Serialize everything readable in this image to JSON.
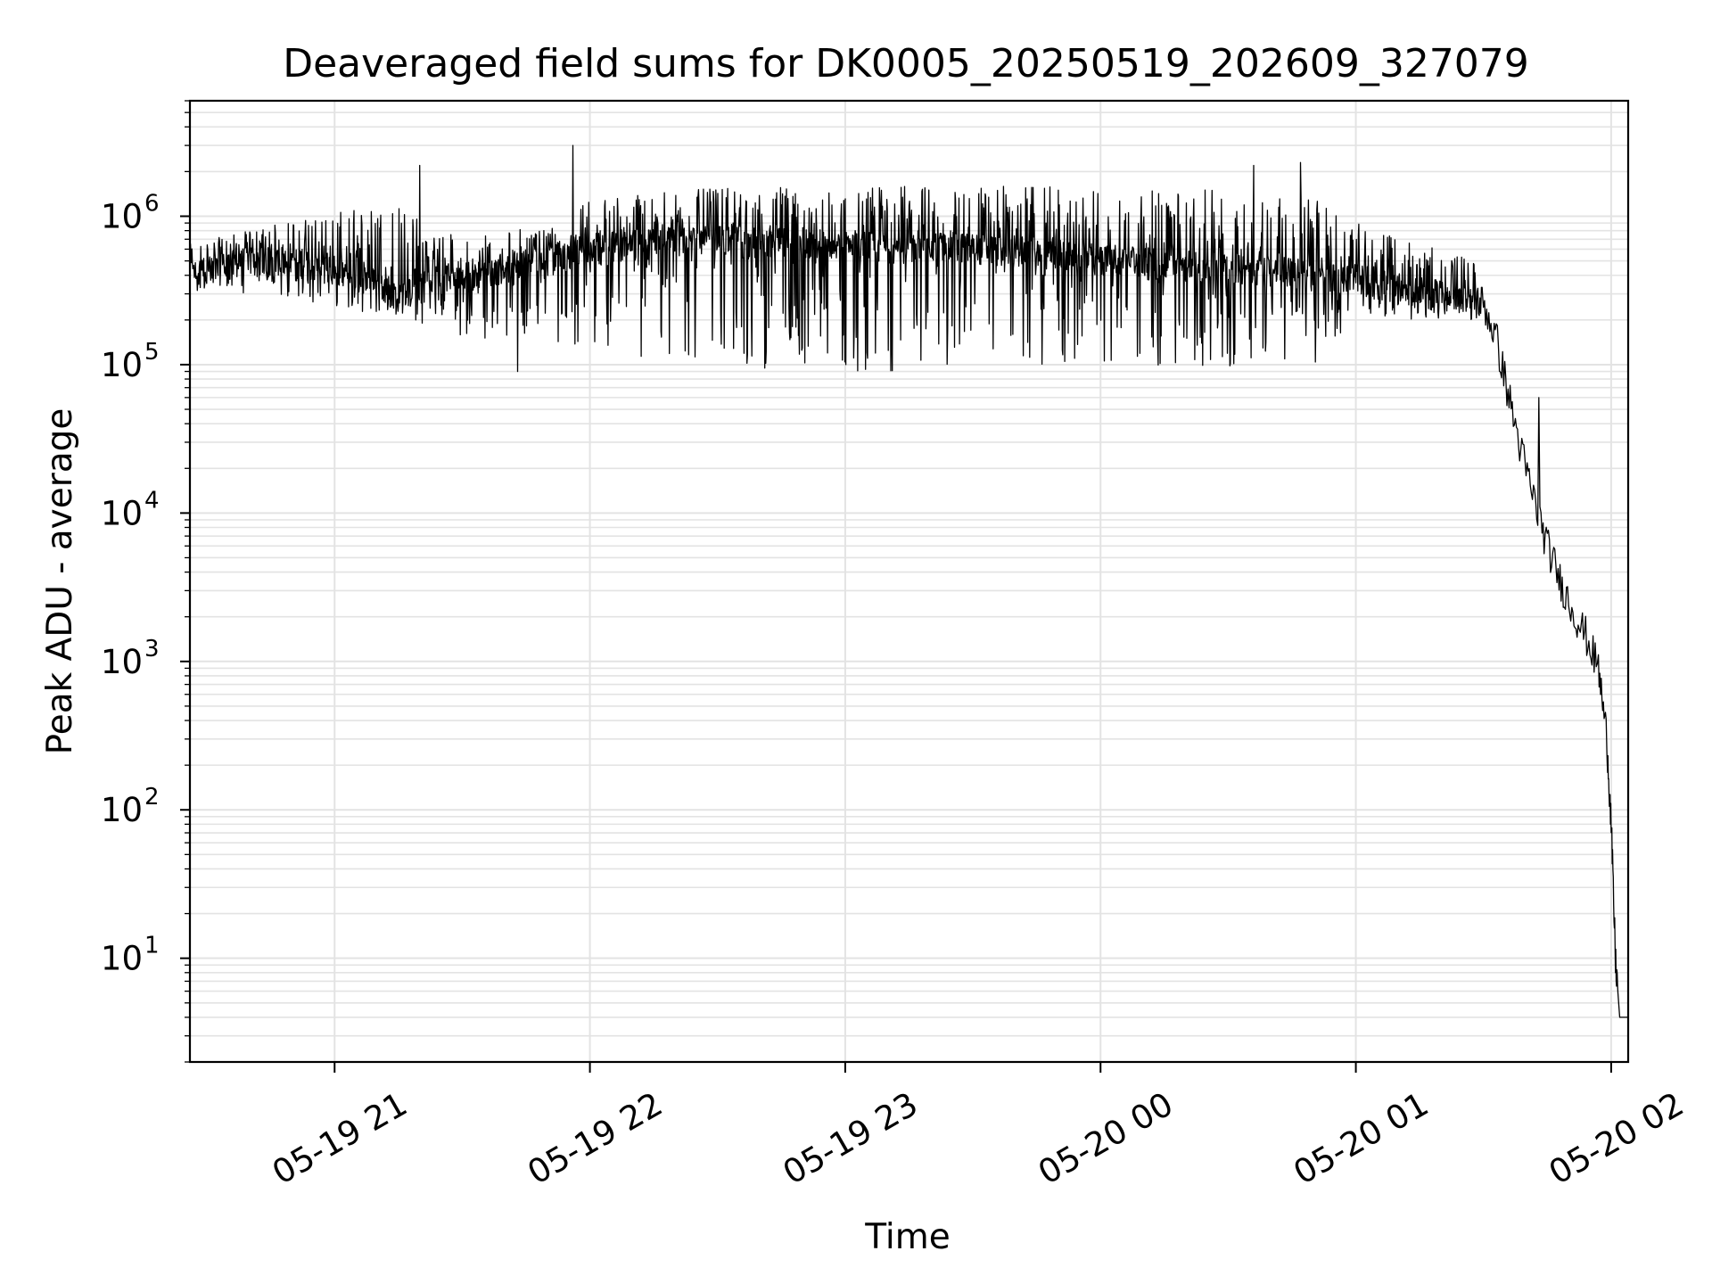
{
  "chart_data": {
    "type": "line",
    "title": "Deaveraged field sums for DK0005_20250519_202609_327079",
    "xlabel": "Time",
    "ylabel": "Peak ADU - average",
    "yscale": "log",
    "ylim": [
      2,
      6000000
    ],
    "xlim": [
      "2025-05-19 20:26",
      "2025-05-20 02:04"
    ],
    "grid": true,
    "line_color": "#000000",
    "x_ticks": [
      {
        "time": "2025-05-19 21:00",
        "label": "05-19 21"
      },
      {
        "time": "2025-05-19 22:00",
        "label": "05-19 22"
      },
      {
        "time": "2025-05-19 23:00",
        "label": "05-19 23"
      },
      {
        "time": "2025-05-20 00:00",
        "label": "05-20 00"
      },
      {
        "time": "2025-05-20 01:00",
        "label": "05-20 01"
      },
      {
        "time": "2025-05-20 02:00",
        "label": "05-20 02"
      }
    ],
    "y_ticks": [
      {
        "value": 10,
        "base": "10",
        "exp": "1"
      },
      {
        "value": 100,
        "base": "10",
        "exp": "2"
      },
      {
        "value": 1000,
        "base": "10",
        "exp": "3"
      },
      {
        "value": 10000,
        "base": "10",
        "exp": "4"
      },
      {
        "value": 100000,
        "base": "10",
        "exp": "5"
      },
      {
        "value": 1000000,
        "base": "10",
        "exp": "6"
      }
    ],
    "series": [
      {
        "x": [
          "2025-05-19 20:26",
          "2025-05-19 20:30",
          "2025-05-19 20:35",
          "2025-05-19 20:40",
          "2025-05-19 20:45",
          "2025-05-19 20:50",
          "2025-05-19 20:55",
          "2025-05-19 21:00",
          "2025-05-19 21:05",
          "2025-05-19 21:10",
          "2025-05-19 21:15",
          "2025-05-19 21:20",
          "2025-05-19 21:25",
          "2025-05-19 21:30",
          "2025-05-19 21:35",
          "2025-05-19 21:40",
          "2025-05-19 21:45",
          "2025-05-19 21:50",
          "2025-05-19 21:55",
          "2025-05-19 22:00",
          "2025-05-19 22:10",
          "2025-05-19 22:20",
          "2025-05-19 22:30",
          "2025-05-19 22:40",
          "2025-05-19 22:50",
          "2025-05-19 23:00",
          "2025-05-19 23:10",
          "2025-05-19 23:20",
          "2025-05-19 23:30",
          "2025-05-19 23:40",
          "2025-05-19 23:50",
          "2025-05-20 00:00",
          "2025-05-20 00:10",
          "2025-05-20 00:20",
          "2025-05-20 00:30",
          "2025-05-20 00:40",
          "2025-05-20 00:50",
          "2025-05-20 01:00",
          "2025-05-20 01:05",
          "2025-05-20 01:10",
          "2025-05-20 01:15",
          "2025-05-20 01:20",
          "2025-05-20 01:25",
          "2025-05-20 01:30",
          "2025-05-20 01:33",
          "2025-05-20 01:36",
          "2025-05-20 01:39",
          "2025-05-20 01:42",
          "2025-05-20 01:45",
          "2025-05-20 01:48",
          "2025-05-20 01:51",
          "2025-05-20 01:54",
          "2025-05-20 01:57",
          "2025-05-20 01:59",
          "2025-05-20 02:00",
          "2025-05-20 02:01",
          "2025-05-20 02:02",
          "2025-05-20 02:02",
          "2025-05-20 02:03"
        ],
        "y": [
          400000,
          420000,
          450000,
          500000,
          480000,
          520000,
          450000,
          420000,
          400000,
          350000,
          300000,
          320000,
          380000,
          400000,
          420000,
          450000,
          480000,
          500000,
          550000,
          600000,
          650000,
          700000,
          680000,
          650000,
          650000,
          620000,
          600000,
          620000,
          600000,
          580000,
          560000,
          500000,
          480000,
          460000,
          450000,
          420000,
          400000,
          380000,
          350000,
          320000,
          300000,
          290000,
          280000,
          260000,
          150000,
          60000,
          25000,
          12000,
          6000,
          3500,
          2200,
          1500,
          900,
          300,
          80,
          10,
          4,
          4,
          4
        ]
      }
    ],
    "noise_band": {
      "x": [
        "2025-05-19 20:26",
        "2025-05-19 20:40",
        "2025-05-19 21:00",
        "2025-05-19 21:15",
        "2025-05-19 21:30",
        "2025-05-19 21:50",
        "2025-05-19 22:00",
        "2025-05-19 22:15",
        "2025-05-19 23:00",
        "2025-05-19 23:45",
        "2025-05-20 00:00",
        "2025-05-20 00:30",
        "2025-05-20 00:50",
        "2025-05-20 01:00",
        "2025-05-20 01:15",
        "2025-05-20 01:28"
      ],
      "high": [
        650000,
        800000,
        1100000,
        1200000,
        700000,
        900000,
        1300000,
        1500000,
        1600000,
        1600000,
        1500000,
        1500000,
        1400000,
        900000,
        650000,
        500000
      ],
      "low": [
        300000,
        300000,
        250000,
        200000,
        150000,
        150000,
        120000,
        100000,
        90000,
        90000,
        100000,
        90000,
        100000,
        200000,
        200000,
        200000
      ]
    },
    "spikes": [
      {
        "x": "2025-05-19 21:20",
        "y": 2200000
      },
      {
        "x": "2025-05-19 21:56",
        "y": 3000000
      },
      {
        "x": "2025-05-20 00:36",
        "y": 2200000
      },
      {
        "x": "2025-05-20 00:47",
        "y": 2300000
      },
      {
        "x": "2025-05-20 01:43",
        "y": 60000
      },
      {
        "x": "2025-05-19 21:43",
        "y": 90000
      }
    ]
  }
}
